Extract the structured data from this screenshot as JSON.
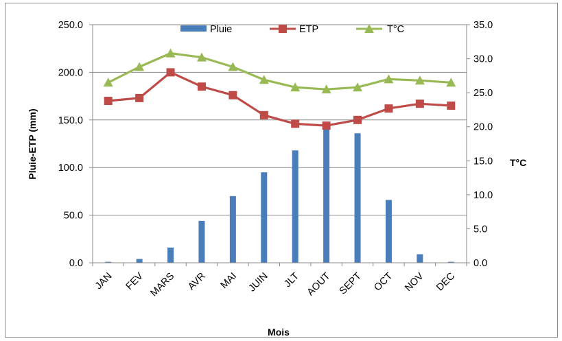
{
  "chart_data": {
    "type": "bar",
    "categories": [
      "JAN",
      "FEV",
      "MARS",
      "AVR",
      "MAI",
      "JUIN",
      "JLT",
      "AOUT",
      "SEPT",
      "OCT",
      "NOV",
      "DEC"
    ],
    "series": [
      {
        "name": "Pluie",
        "type": "bar",
        "axis": "left",
        "color": "#4a7ebb",
        "values": [
          1,
          4,
          16,
          44,
          70,
          95,
          118,
          142,
          136,
          66,
          9,
          1
        ]
      },
      {
        "name": "ETP",
        "type": "line",
        "axis": "left",
        "color": "#be4b48",
        "marker": "square",
        "values": [
          170,
          173,
          200,
          185,
          176,
          155,
          146,
          144,
          150,
          162,
          167,
          165
        ]
      },
      {
        "name": "T°C",
        "type": "line",
        "axis": "right",
        "color": "#98b954",
        "marker": "triangle",
        "values": [
          26.5,
          28.8,
          30.8,
          30.2,
          28.8,
          26.9,
          25.8,
          25.5,
          25.8,
          27.0,
          26.8,
          26.5
        ]
      }
    ],
    "xlabel": "Mois",
    "ylabel": "Pluie-ETP (mm)",
    "y2label": "T°C",
    "ylim": [
      0,
      250
    ],
    "y2lim": [
      0,
      35
    ],
    "yticks": [
      "0.0",
      "50.0",
      "100.0",
      "150.0",
      "200.0",
      "250.0"
    ],
    "y2ticks": [
      "0.0",
      "5.0",
      "10.0",
      "15.0",
      "20.0",
      "25.0",
      "30.0",
      "35.0"
    ],
    "legend_position": "top",
    "grid": "horizontal"
  }
}
